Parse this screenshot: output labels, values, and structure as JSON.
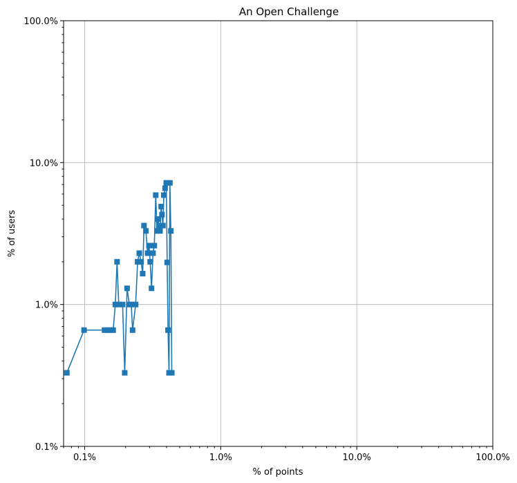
{
  "chart_data": {
    "type": "line",
    "title": "An Open Challenge",
    "xlabel": "% of points",
    "ylabel": "% of users",
    "xscale": "log",
    "yscale": "log",
    "xlim": [
      0.07,
      100
    ],
    "ylim": [
      0.1,
      100
    ],
    "grid": true,
    "marker": "square",
    "color": "#1f77b4",
    "x_ticks": [
      {
        "value": 0.1,
        "label": "0.1%"
      },
      {
        "value": 1,
        "label": "1.0%"
      },
      {
        "value": 10,
        "label": "10.0%"
      },
      {
        "value": 100,
        "label": "100.0%"
      }
    ],
    "y_ticks": [
      {
        "value": 0.1,
        "label": "0.1%"
      },
      {
        "value": 1,
        "label": "1.0%"
      },
      {
        "value": 10,
        "label": "10.0%"
      },
      {
        "value": 100,
        "label": "100.0%"
      }
    ],
    "series": [
      {
        "x": [
          0.074,
          0.099,
          0.14,
          0.148,
          0.155,
          0.162,
          0.168,
          0.173,
          0.178,
          0.19,
          0.197,
          0.205,
          0.213,
          0.22,
          0.225,
          0.237,
          0.245,
          0.252,
          0.26,
          0.267,
          0.273,
          0.282,
          0.29,
          0.297,
          0.303,
          0.31,
          0.318,
          0.325,
          0.333,
          0.34,
          0.346,
          0.352,
          0.358,
          0.365,
          0.37,
          0.376,
          0.382,
          0.39,
          0.398,
          0.404,
          0.41,
          0.417,
          0.423,
          0.43,
          0.437
        ],
        "y": [
          0.33,
          0.66,
          0.66,
          0.66,
          0.66,
          0.66,
          1.0,
          2.0,
          1.0,
          1.0,
          0.33,
          1.3,
          1.0,
          1.0,
          0.66,
          1.0,
          2.0,
          2.3,
          2.0,
          1.65,
          3.6,
          3.3,
          2.3,
          2.6,
          2.0,
          1.3,
          2.3,
          2.6,
          5.9,
          3.3,
          4.0,
          3.6,
          3.3,
          4.9,
          4.3,
          3.6,
          5.9,
          6.6,
          7.2,
          1.98,
          0.66,
          0.33,
          7.2,
          3.3,
          0.33
        ]
      }
    ]
  }
}
